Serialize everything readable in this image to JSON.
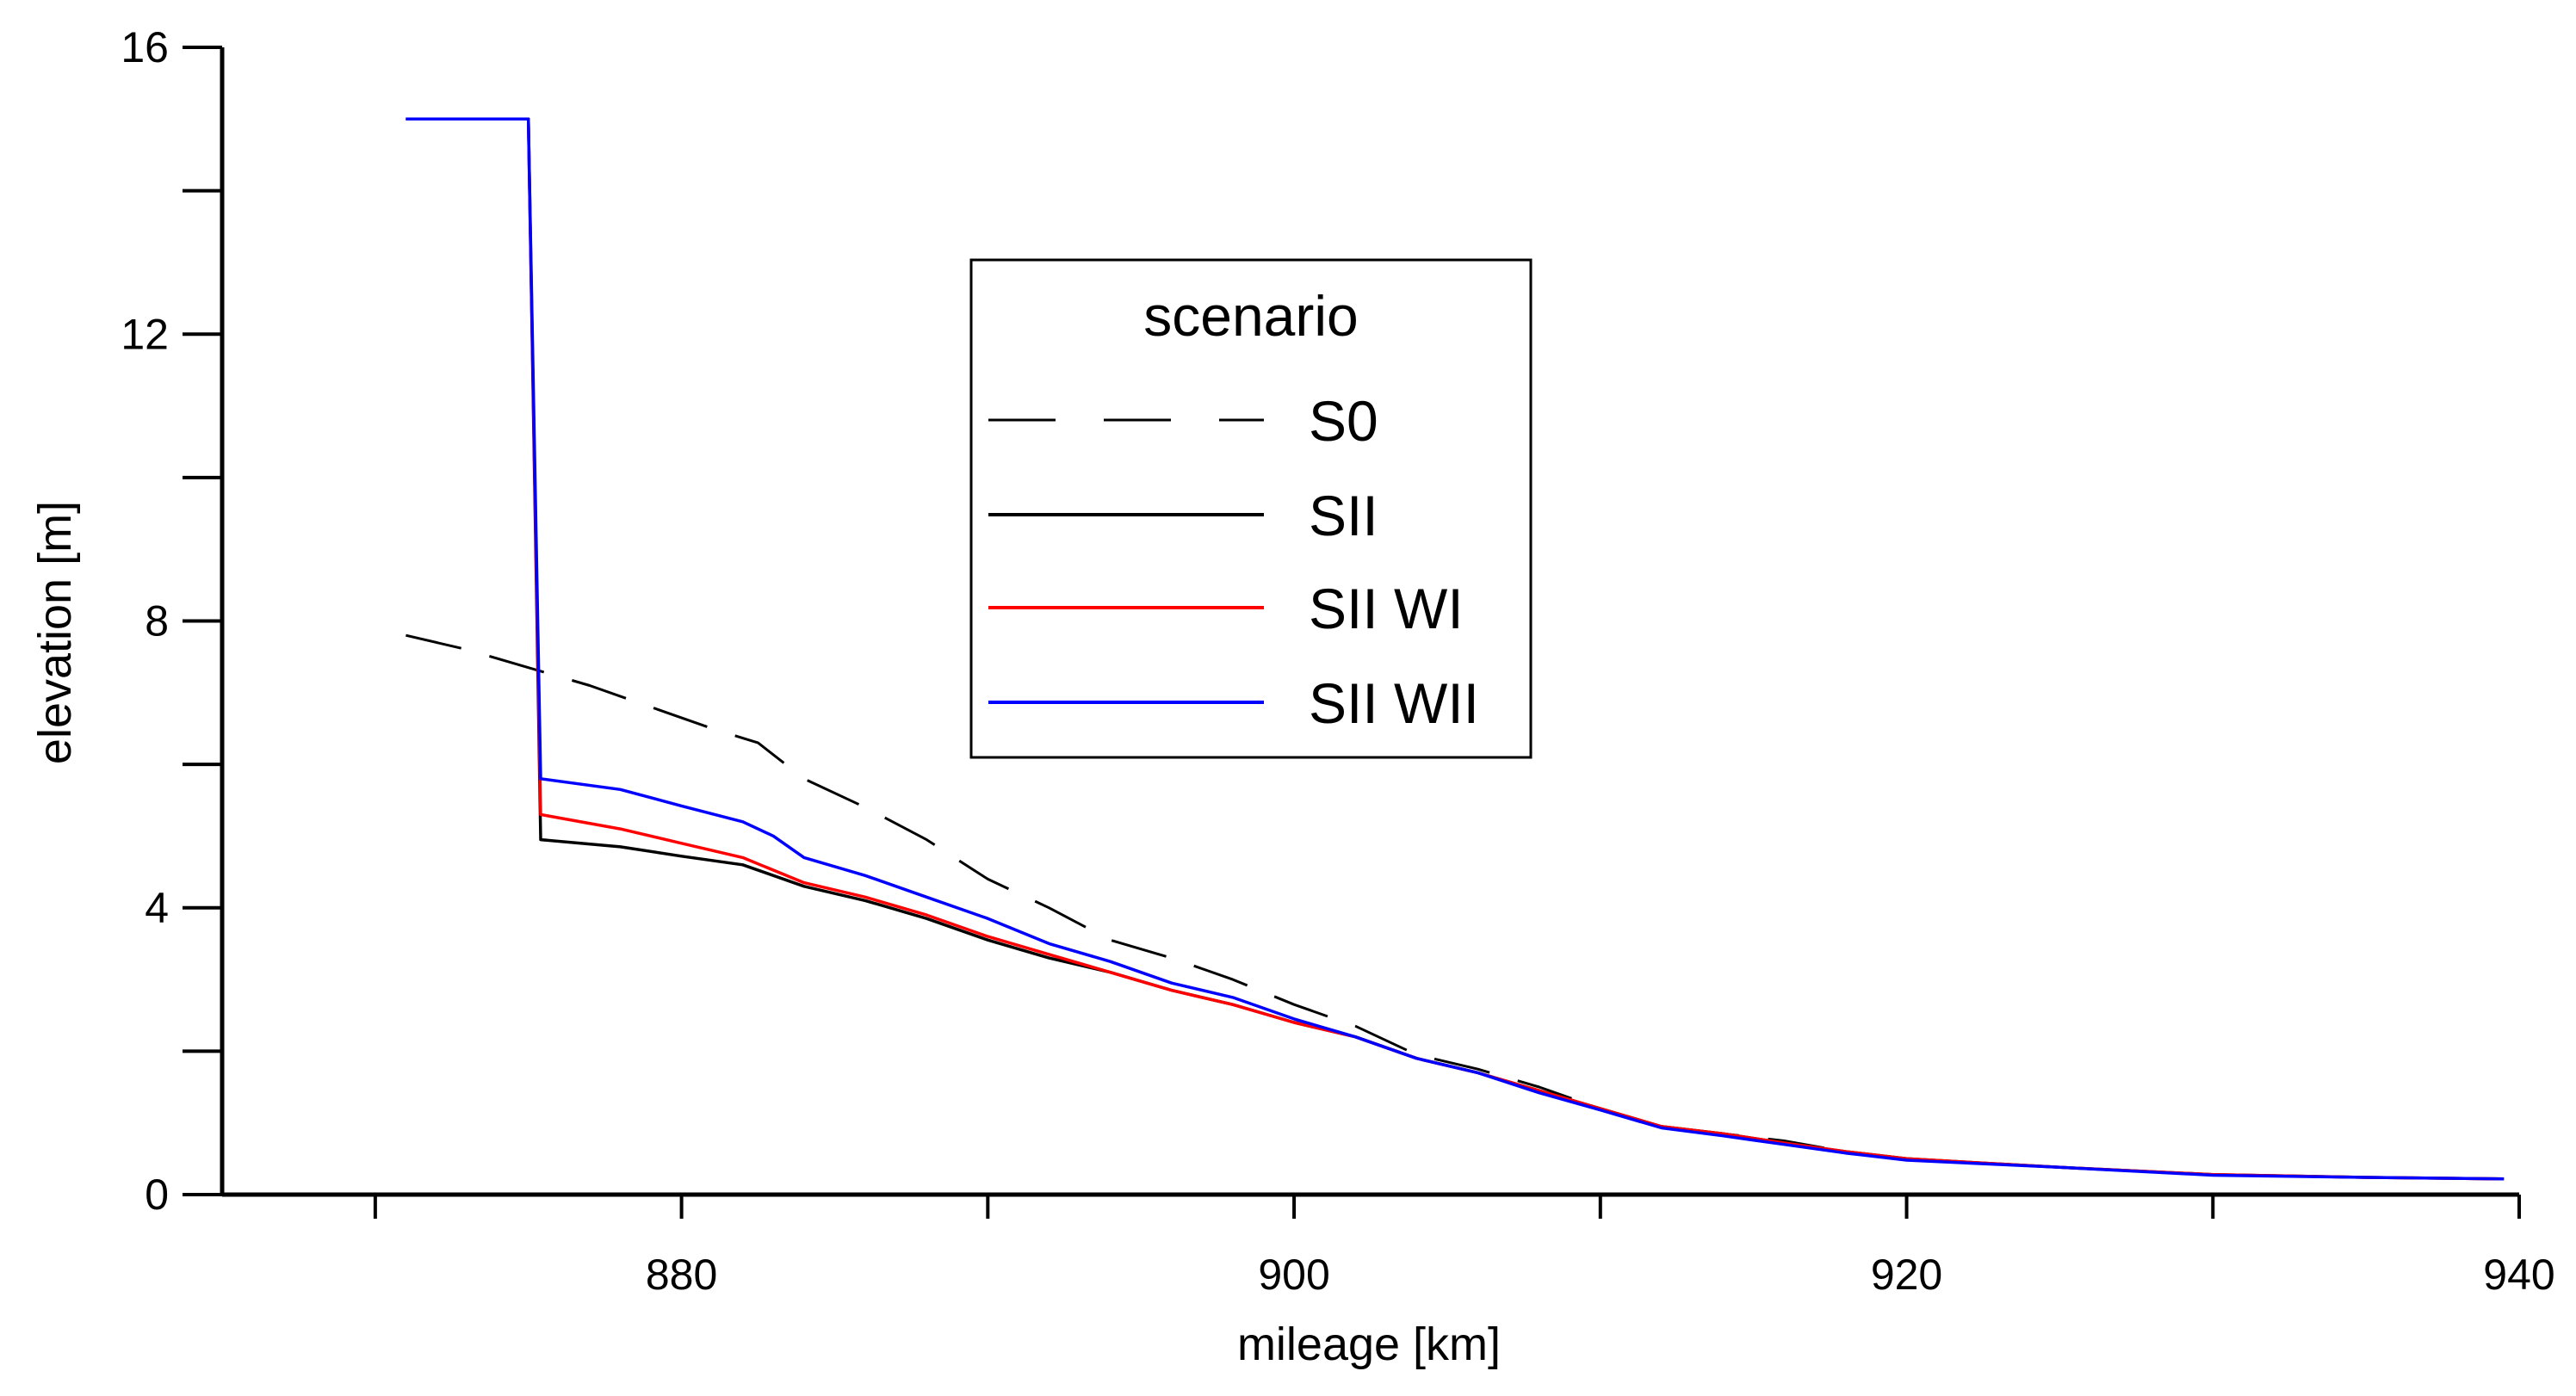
{
  "chart_data": {
    "type": "line",
    "title": "",
    "xlabel": "mileage [km]",
    "ylabel": "elevation [m]",
    "xlim": [
      865,
      940
    ],
    "ylim": [
      0,
      16
    ],
    "x_ticks": [
      880,
      900,
      920,
      940
    ],
    "y_ticks": [
      0,
      4,
      8,
      12,
      16
    ],
    "x_minor_ticks": [
      870,
      890,
      910,
      930
    ],
    "y_minor_ticks": [
      2,
      6,
      10,
      14
    ],
    "grid": false,
    "legend": {
      "title": "scenario",
      "position": "center-top"
    },
    "series": [
      {
        "name": "S0",
        "color": "#000000",
        "style": "dashed",
        "points": [
          [
            871,
            7.8
          ],
          [
            873,
            7.6
          ],
          [
            875,
            7.35
          ],
          [
            877,
            7.1
          ],
          [
            879,
            6.8
          ],
          [
            881,
            6.5
          ],
          [
            882.5,
            6.3
          ],
          [
            884,
            5.8
          ],
          [
            886,
            5.4
          ],
          [
            888,
            4.95
          ],
          [
            890,
            4.4
          ],
          [
            892,
            4.0
          ],
          [
            894,
            3.55
          ],
          [
            896,
            3.3
          ],
          [
            898,
            3.0
          ],
          [
            900,
            2.65
          ],
          [
            902,
            2.35
          ],
          [
            904,
            1.95
          ],
          [
            906,
            1.75
          ],
          [
            908,
            1.5
          ],
          [
            910,
            1.2
          ],
          [
            912,
            0.95
          ],
          [
            914,
            0.85
          ],
          [
            916,
            0.75
          ],
          [
            918,
            0.6
          ],
          [
            920,
            0.5
          ]
        ]
      },
      {
        "name": "SII",
        "color": "#000000",
        "style": "solid",
        "points": [
          [
            871,
            15.0
          ],
          [
            875,
            15.0
          ],
          [
            875.4,
            4.95
          ],
          [
            878,
            4.85
          ],
          [
            880,
            4.72
          ],
          [
            882,
            4.6
          ],
          [
            884,
            4.3
          ],
          [
            886,
            4.1
          ],
          [
            888,
            3.85
          ],
          [
            890,
            3.55
          ],
          [
            892,
            3.3
          ],
          [
            894,
            3.1
          ],
          [
            896,
            2.85
          ],
          [
            898,
            2.65
          ],
          [
            900,
            2.4
          ],
          [
            902,
            2.2
          ],
          [
            904,
            1.9
          ],
          [
            906,
            1.7
          ],
          [
            908,
            1.45
          ],
          [
            910,
            1.2
          ],
          [
            912,
            0.95
          ],
          [
            914,
            0.85
          ],
          [
            916,
            0.72
          ],
          [
            918,
            0.6
          ],
          [
            920,
            0.5
          ],
          [
            925,
            0.38
          ],
          [
            930,
            0.28
          ],
          [
            935,
            0.24
          ],
          [
            939.5,
            0.22
          ]
        ]
      },
      {
        "name": "SII WI",
        "color": "#ff0000",
        "style": "solid",
        "points": [
          [
            871,
            15.0
          ],
          [
            875,
            15.0
          ],
          [
            875.4,
            5.3
          ],
          [
            878,
            5.1
          ],
          [
            880,
            4.9
          ],
          [
            882,
            4.7
          ],
          [
            884,
            4.35
          ],
          [
            886,
            4.15
          ],
          [
            888,
            3.9
          ],
          [
            890,
            3.6
          ],
          [
            892,
            3.35
          ],
          [
            894,
            3.1
          ],
          [
            896,
            2.85
          ],
          [
            898,
            2.65
          ],
          [
            900,
            2.4
          ],
          [
            902,
            2.2
          ],
          [
            904,
            1.9
          ],
          [
            906,
            1.7
          ],
          [
            908,
            1.45
          ],
          [
            910,
            1.2
          ],
          [
            912,
            0.95
          ],
          [
            914,
            0.85
          ],
          [
            916,
            0.72
          ],
          [
            918,
            0.6
          ],
          [
            920,
            0.5
          ],
          [
            925,
            0.38
          ],
          [
            930,
            0.28
          ],
          [
            935,
            0.24
          ],
          [
            939.5,
            0.22
          ]
        ]
      },
      {
        "name": "SII WII",
        "color": "#0000ff",
        "style": "solid",
        "points": [
          [
            871,
            15.0
          ],
          [
            875,
            15.0
          ],
          [
            875.4,
            5.8
          ],
          [
            878,
            5.65
          ],
          [
            880,
            5.42
          ],
          [
            882,
            5.2
          ],
          [
            883,
            5.0
          ],
          [
            884,
            4.7
          ],
          [
            886,
            4.45
          ],
          [
            888,
            4.15
          ],
          [
            890,
            3.85
          ],
          [
            892,
            3.5
          ],
          [
            894,
            3.25
          ],
          [
            896,
            2.95
          ],
          [
            898,
            2.75
          ],
          [
            900,
            2.45
          ],
          [
            902,
            2.2
          ],
          [
            904,
            1.9
          ],
          [
            906,
            1.7
          ],
          [
            908,
            1.42
          ],
          [
            910,
            1.18
          ],
          [
            912,
            0.93
          ],
          [
            914,
            0.82
          ],
          [
            916,
            0.7
          ],
          [
            918,
            0.58
          ],
          [
            920,
            0.48
          ],
          [
            925,
            0.38
          ],
          [
            930,
            0.27
          ],
          [
            935,
            0.24
          ],
          [
            939.5,
            0.22
          ]
        ]
      }
    ]
  }
}
